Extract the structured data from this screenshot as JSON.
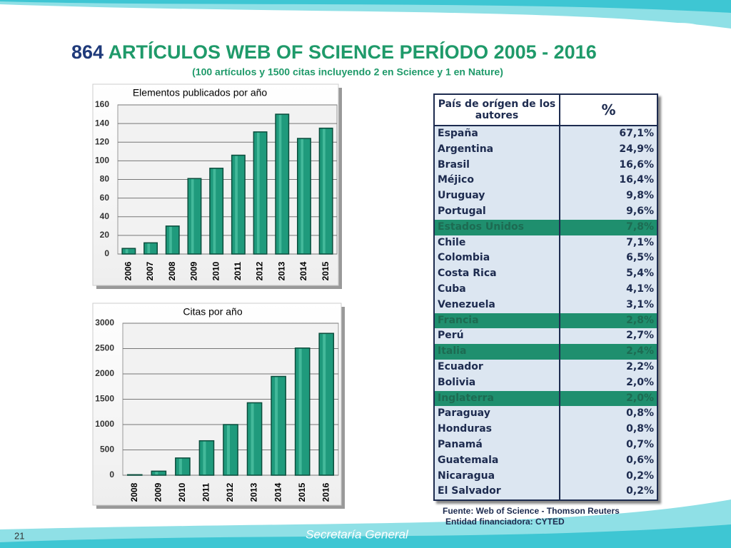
{
  "title_number": "864",
  "title_text": "ARTÍCULOS WEB OF SCIENCE PERÍODO 2005 - 2016",
  "subtitle": "(100 artículos y 1500 citas incluyendo 2 en Science y 1 en Nature)",
  "chart_data": [
    {
      "type": "bar",
      "title": "Elementos publicados por año",
      "categories": [
        "2006",
        "2007",
        "2008",
        "2009",
        "2010",
        "2011",
        "2012",
        "2013",
        "2014",
        "2015"
      ],
      "values": [
        6,
        12,
        30,
        81,
        92,
        106,
        131,
        150,
        124,
        135
      ],
      "color": "#1f9a7c",
      "ylim": [
        0,
        160
      ],
      "yticks": [
        0,
        20,
        40,
        60,
        80,
        100,
        120,
        140,
        160
      ],
      "grid": true
    },
    {
      "type": "bar",
      "title": "Citas por año",
      "categories": [
        "2008",
        "2009",
        "2010",
        "2011",
        "2012",
        "2013",
        "2014",
        "2015",
        "2016"
      ],
      "values": [
        10,
        80,
        340,
        680,
        1000,
        1430,
        1950,
        2510,
        2800
      ],
      "color": "#1f9a7c",
      "ylim": [
        0,
        3000
      ],
      "yticks": [
        0,
        500,
        1000,
        1500,
        2000,
        2500,
        3000
      ],
      "grid": true
    }
  ],
  "table": {
    "header": [
      "País de orígen de los autores",
      "%"
    ],
    "highlight_color": "#1f8f6e",
    "rows": [
      {
        "country": "España",
        "share": "67,1%"
      },
      {
        "country": "Argentina",
        "share": "24,9%"
      },
      {
        "country": "Brasil",
        "share": "16,6%"
      },
      {
        "country": "Méjico",
        "share": "16,4%"
      },
      {
        "country": "Uruguay",
        "share": "9,8%"
      },
      {
        "country": "Portugal",
        "share": "9,6%"
      },
      {
        "country": "Estados Unidos",
        "share": "7,8%",
        "highlight": true
      },
      {
        "country": "Chile",
        "share": "7,1%"
      },
      {
        "country": "Colombia",
        "share": "6,5%"
      },
      {
        "country": "Costa Rica",
        "share": "5,4%"
      },
      {
        "country": "Cuba",
        "share": "4,1%"
      },
      {
        "country": "Venezuela",
        "share": "3,1%"
      },
      {
        "country": "Francia",
        "share": "2,8%",
        "highlight": true
      },
      {
        "country": "Perú",
        "share": "2,7%"
      },
      {
        "country": "Italia",
        "share": "2,4%",
        "highlight": true
      },
      {
        "country": "Ecuador",
        "share": "2,2%"
      },
      {
        "country": "Bolivia",
        "share": "2,0%"
      },
      {
        "country": "Inglaterra",
        "share": "2,0%",
        "highlight": true
      },
      {
        "country": "Paraguay",
        "share": "0,8%"
      },
      {
        "country": "Honduras",
        "share": "0,8%"
      },
      {
        "country": "Panamá",
        "share": "0,7%"
      },
      {
        "country": "Guatemala",
        "share": "0,6%"
      },
      {
        "country": "Nicaragua",
        "share": "0,2%"
      },
      {
        "country": "El Salvador",
        "share": "0,2%"
      }
    ]
  },
  "source": "Fuente: Web of Science -  Thomson Reuters",
  "funding": "Entidad financiadora: CYTED",
  "footer": "Secretaría General",
  "page_number": "21"
}
